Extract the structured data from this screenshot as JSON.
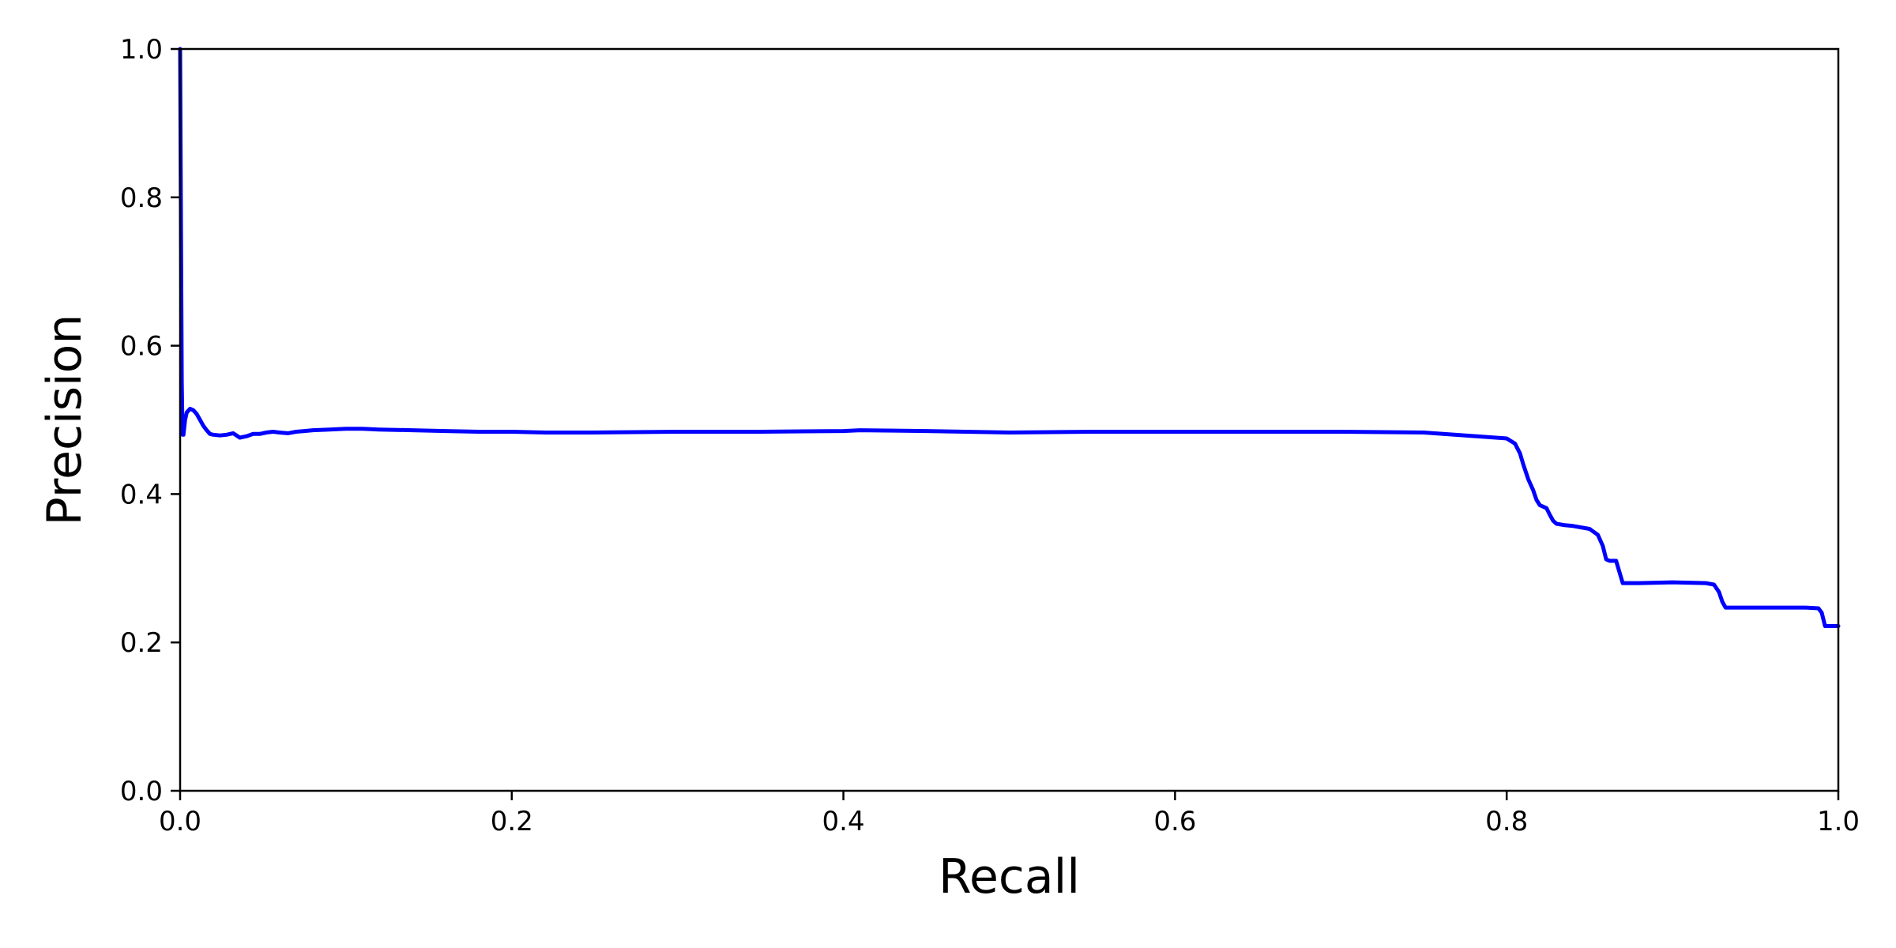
{
  "chart_data": {
    "type": "line",
    "title": "",
    "xlabel": "Recall",
    "ylabel": "Precision",
    "xlim": [
      0.0,
      1.0
    ],
    "ylim": [
      0.0,
      1.0
    ],
    "xticks": [
      0.0,
      0.2,
      0.4,
      0.6,
      0.8,
      1.0
    ],
    "xtick_labels": [
      "0.0",
      "0.2",
      "0.4",
      "0.6",
      "0.8",
      "1.0"
    ],
    "yticks": [
      0.0,
      0.2,
      0.4,
      0.6,
      0.8,
      1.0
    ],
    "ytick_labels": [
      "0.0",
      "0.2",
      "0.4",
      "0.6",
      "0.8",
      "1.0"
    ],
    "grid": false,
    "legend": null,
    "series": [
      {
        "name": "precision-recall",
        "color": "#0000ff",
        "x": [
          0.0,
          0.0005,
          0.001,
          0.0015,
          0.002,
          0.003,
          0.004,
          0.006,
          0.008,
          0.01,
          0.012,
          0.014,
          0.016,
          0.018,
          0.02,
          0.024,
          0.028,
          0.032,
          0.036,
          0.04,
          0.044,
          0.048,
          0.052,
          0.056,
          0.06,
          0.065,
          0.07,
          0.075,
          0.08,
          0.09,
          0.1,
          0.11,
          0.12,
          0.14,
          0.16,
          0.18,
          0.2,
          0.22,
          0.25,
          0.3,
          0.35,
          0.4,
          0.41,
          0.45,
          0.5,
          0.55,
          0.6,
          0.65,
          0.7,
          0.75,
          0.8,
          0.805,
          0.808,
          0.81,
          0.813,
          0.816,
          0.818,
          0.82,
          0.824,
          0.826,
          0.828,
          0.83,
          0.835,
          0.84,
          0.85,
          0.855,
          0.858,
          0.86,
          0.862,
          0.866,
          0.868,
          0.87,
          0.88,
          0.9,
          0.92,
          0.925,
          0.928,
          0.93,
          0.932,
          0.94,
          0.96,
          0.98,
          0.988,
          0.99,
          0.992,
          1.0
        ],
        "y": [
          1.0,
          0.78,
          0.55,
          0.48,
          0.48,
          0.5,
          0.51,
          0.515,
          0.513,
          0.508,
          0.5,
          0.492,
          0.486,
          0.481,
          0.48,
          0.479,
          0.48,
          0.482,
          0.476,
          0.478,
          0.481,
          0.481,
          0.483,
          0.484,
          0.483,
          0.482,
          0.484,
          0.485,
          0.486,
          0.487,
          0.488,
          0.488,
          0.487,
          0.486,
          0.485,
          0.484,
          0.484,
          0.483,
          0.483,
          0.484,
          0.484,
          0.485,
          0.486,
          0.485,
          0.483,
          0.484,
          0.484,
          0.484,
          0.484,
          0.483,
          0.475,
          0.468,
          0.455,
          0.44,
          0.42,
          0.405,
          0.392,
          0.385,
          0.381,
          0.372,
          0.364,
          0.36,
          0.358,
          0.357,
          0.353,
          0.345,
          0.33,
          0.312,
          0.31,
          0.31,
          0.295,
          0.28,
          0.28,
          0.281,
          0.28,
          0.278,
          0.268,
          0.255,
          0.247,
          0.247,
          0.247,
          0.247,
          0.246,
          0.24,
          0.222,
          0.222
        ]
      }
    ]
  }
}
